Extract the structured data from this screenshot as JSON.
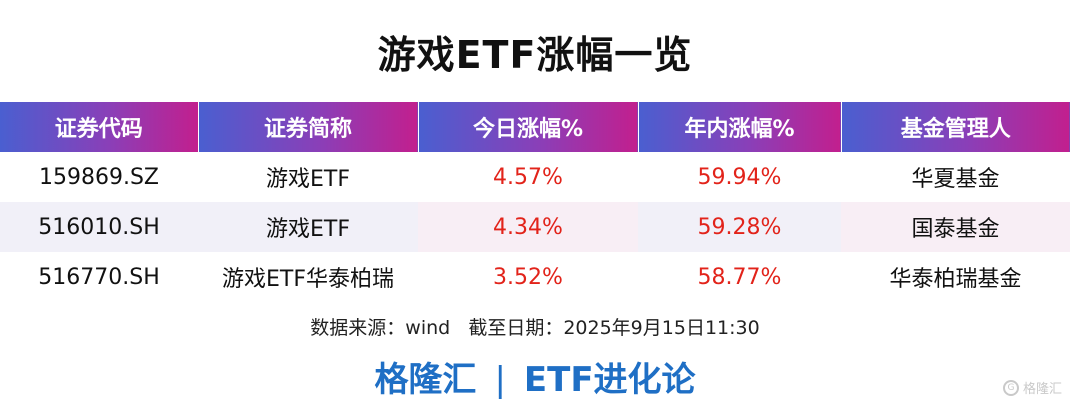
{
  "title": "游戏ETF涨幅一览",
  "table": {
    "headers": [
      "证券代码",
      "证券简称",
      "今日涨幅%",
      "年内涨幅%",
      "基金管理人"
    ],
    "rows": [
      [
        "159869.SZ",
        "游戏ETF",
        "4.57%",
        "59.94%",
        "华夏基金"
      ],
      [
        "516010.SH",
        "游戏ETF",
        "4.34%",
        "59.28%",
        "国泰基金"
      ],
      [
        "516770.SH",
        "游戏ETF华泰柏瑞",
        "3.52%",
        "58.77%",
        "华泰柏瑞基金"
      ]
    ]
  },
  "source_note": "数据来源：wind   截至日期：2025年9月15日11:30",
  "brand": {
    "left": "格隆汇",
    "separator": "|",
    "right": "ETF进化论"
  },
  "watermark": {
    "icon": "gelonghui-logo-icon",
    "text": "格隆汇"
  },
  "colors": {
    "header_gradient_start": "#4a5fd0",
    "header_gradient_end": "#c21f8e",
    "change_text": "#e2231a",
    "brand_text": "#1f6fc5"
  }
}
